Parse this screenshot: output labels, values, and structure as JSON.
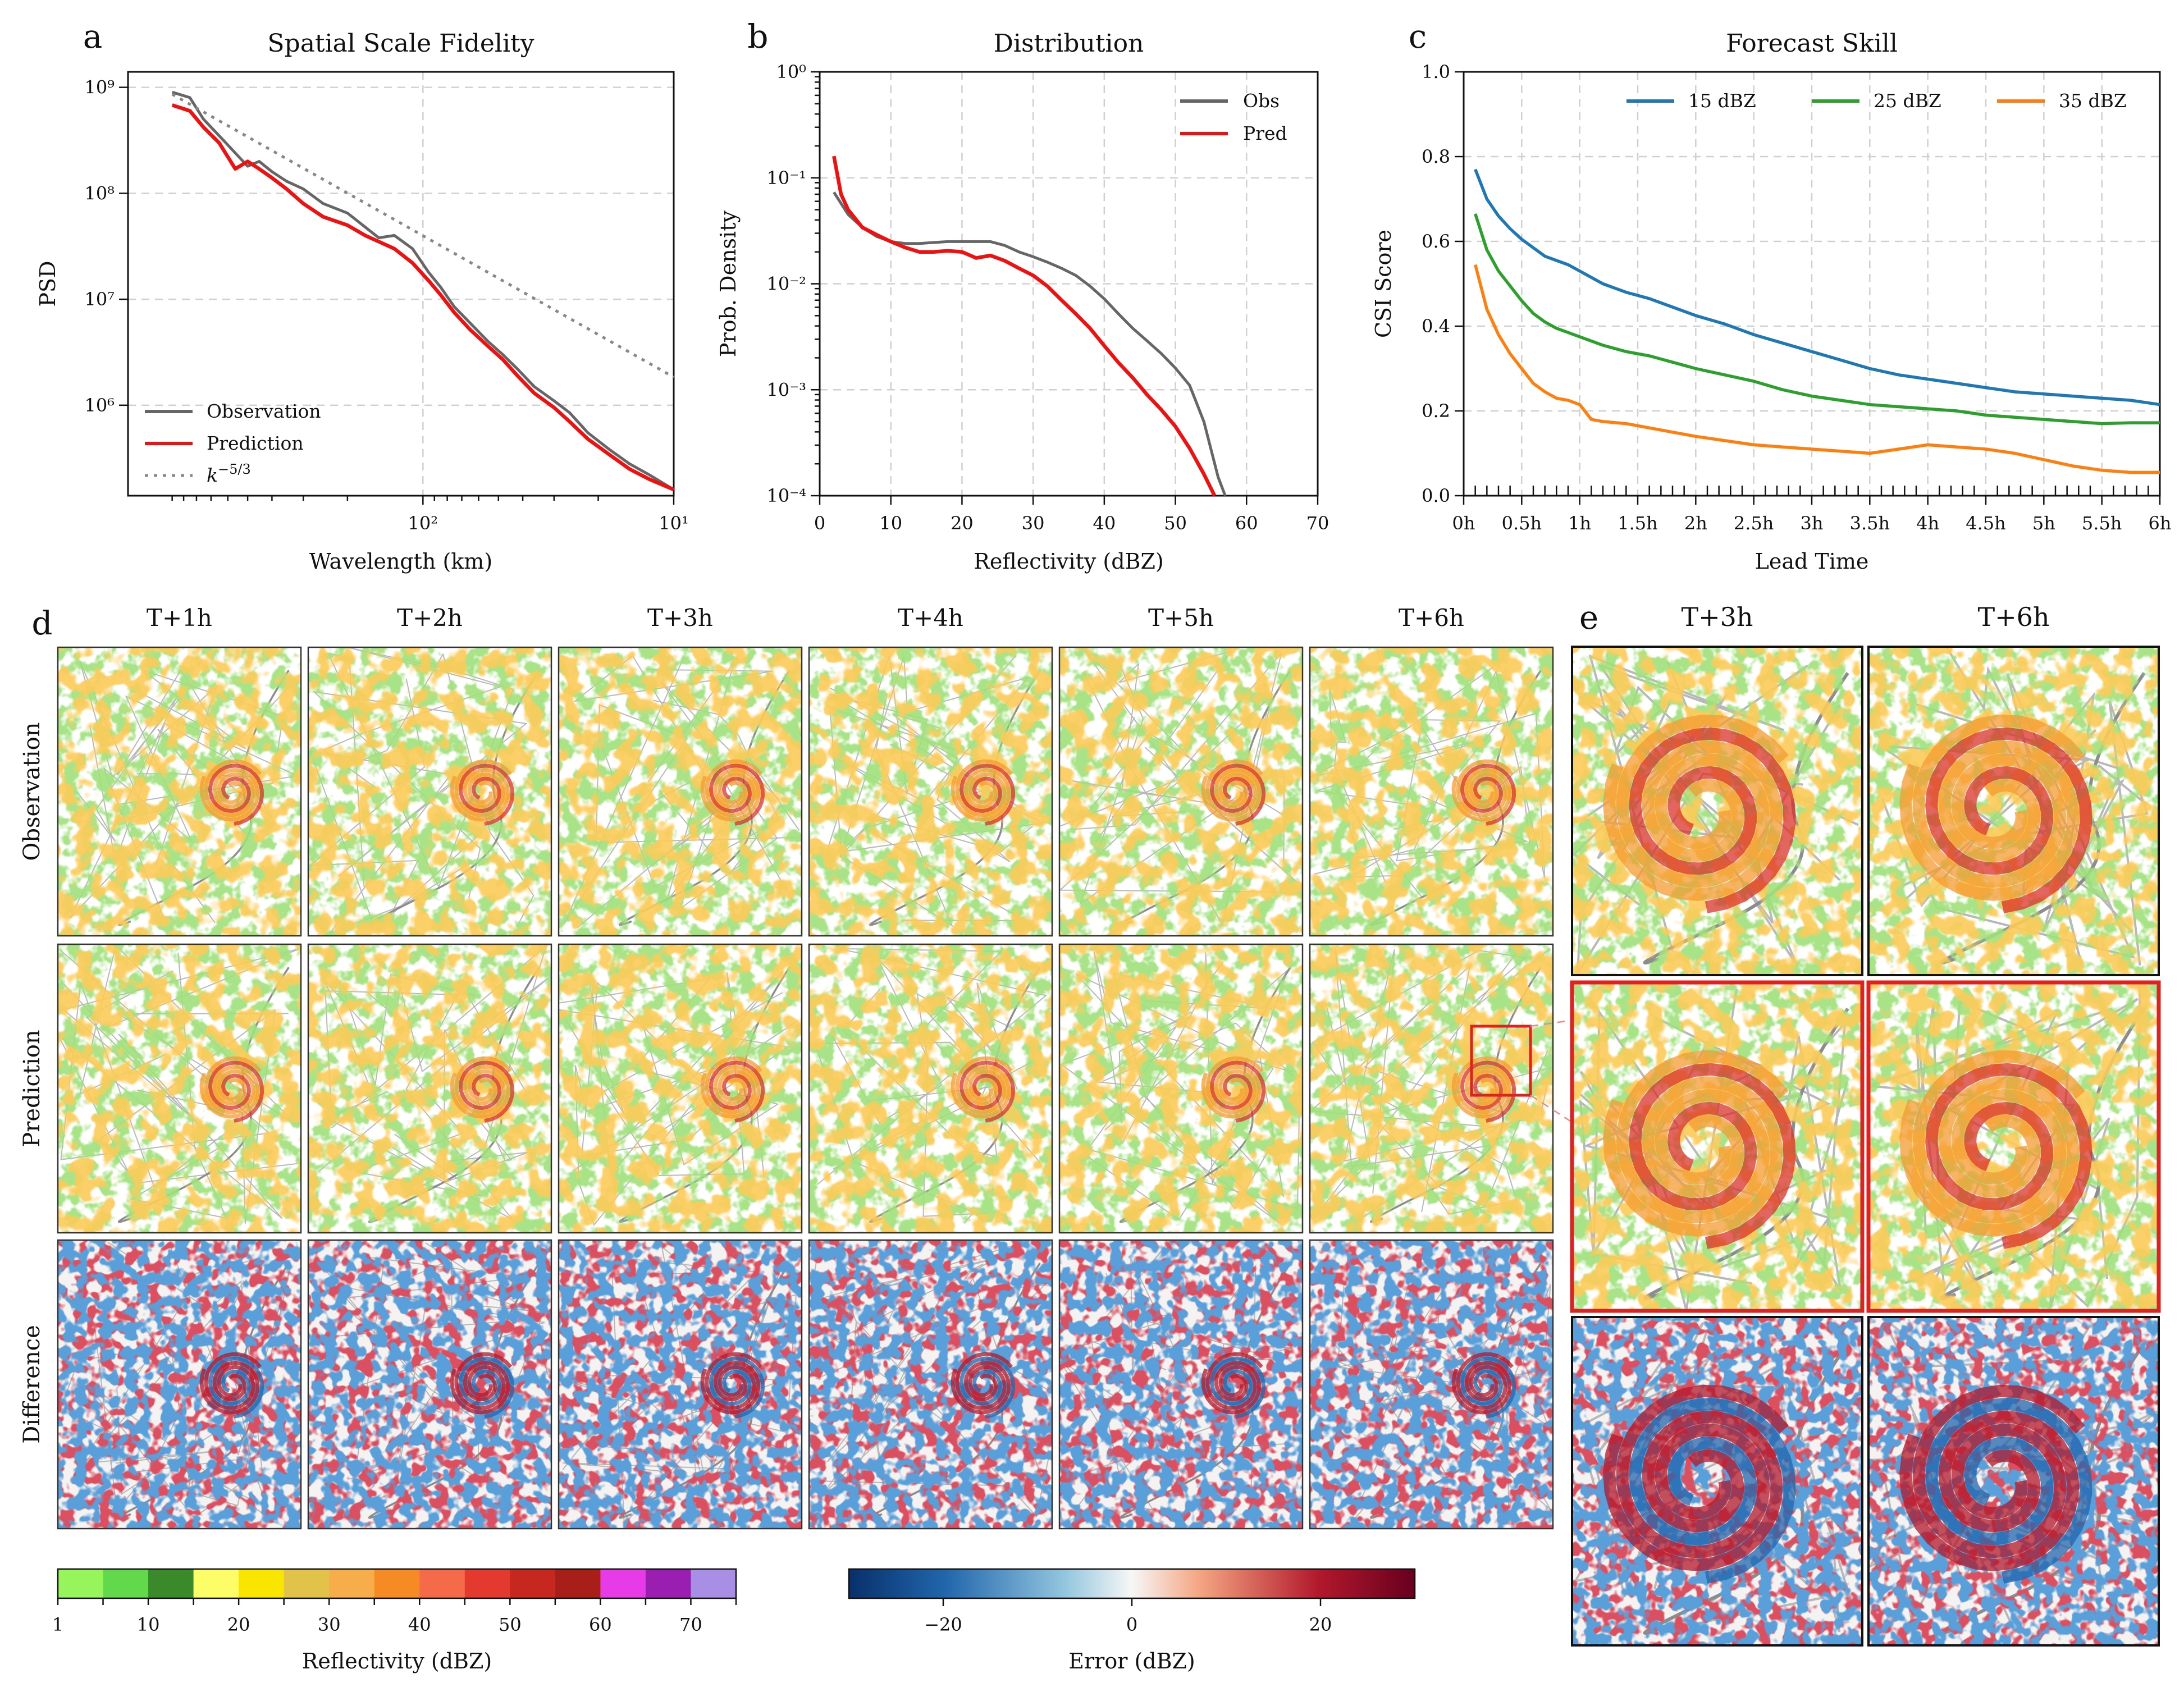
{
  "chart_data": [
    {
      "panel": "a",
      "type": "line",
      "title": "Spatial Scale Fidelity",
      "xlabel": "Wavelength (km)",
      "ylabel": "PSD",
      "xscale": "log",
      "yscale": "log",
      "x_reversed": true,
      "xlim_km": [
        1500,
        10
      ],
      "ylim": [
        140000,
        1400000000
      ],
      "xticks": [
        {
          "v": 100,
          "label": "10²"
        },
        {
          "v": 10,
          "label": "10¹"
        }
      ],
      "yticks": [
        {
          "v": 1000000,
          "label": "10⁶"
        },
        {
          "v": 10000000,
          "label": "10⁷"
        },
        {
          "v": 100000000,
          "label": "10⁸"
        },
        {
          "v": 1000000000,
          "label": "10⁹"
        }
      ],
      "legend_position": "bottom-left",
      "grid": true,
      "series": [
        {
          "name": "Observation",
          "color": "#666666",
          "style": "solid",
          "x": [
            1000,
            850,
            750,
            650,
            560,
            500,
            450,
            400,
            350,
            300,
            250,
            200,
            170,
            150,
            130,
            110,
            95,
            85,
            75,
            65,
            55,
            48,
            42,
            36,
            30,
            26,
            22,
            18,
            15,
            12.5,
            10
          ],
          "y": [
            900000000,
            800000000,
            500000000,
            350000000,
            240000000,
            180000000,
            200000000,
            160000000,
            130000000,
            110000000,
            80000000,
            65000000,
            48000000,
            38000000,
            40000000,
            30000000,
            18000000,
            13000000,
            8500000,
            6000000,
            4000000,
            3000000,
            2200000,
            1500000,
            1100000,
            850000,
            550000,
            380000,
            280000,
            220000,
            160000
          ]
        },
        {
          "name": "Prediction",
          "color": "#ee1111",
          "style": "solid",
          "x": [
            1000,
            850,
            750,
            650,
            560,
            500,
            450,
            400,
            350,
            300,
            250,
            200,
            170,
            150,
            130,
            110,
            95,
            85,
            75,
            65,
            55,
            48,
            42,
            36,
            30,
            26,
            22,
            18,
            15,
            12.5,
            10
          ],
          "y": [
            680000000,
            600000000,
            420000000,
            300000000,
            170000000,
            200000000,
            170000000,
            140000000,
            110000000,
            80000000,
            60000000,
            50000000,
            40000000,
            35000000,
            30000000,
            22000000,
            15000000,
            11000000,
            7500000,
            5200000,
            3600000,
            2700000,
            1900000,
            1300000,
            950000,
            700000,
            480000,
            340000,
            250000,
            200000,
            160000
          ]
        },
        {
          "name": "k^{-5/3}",
          "color": "#888888",
          "style": "dotted",
          "x": [
            1000,
            10
          ],
          "y": [
            860000000,
            1840000
          ]
        }
      ]
    },
    {
      "panel": "b",
      "type": "line",
      "title": "Distribution",
      "xlabel": "Reflectivity (dBZ)",
      "ylabel": "Prob. Density",
      "yscale": "log",
      "xlim": [
        0,
        70
      ],
      "ylim": [
        0.0001,
        1
      ],
      "xticks": [
        0,
        10,
        20,
        30,
        40,
        50,
        60,
        70
      ],
      "yticks": [
        {
          "v": 0.0001,
          "label": "10⁻⁴"
        },
        {
          "v": 0.001,
          "label": "10⁻³"
        },
        {
          "v": 0.01,
          "label": "10⁻²"
        },
        {
          "v": 0.1,
          "label": "10⁻¹"
        },
        {
          "v": 1,
          "label": "10⁰"
        }
      ],
      "legend_position": "top-right",
      "grid": true,
      "series": [
        {
          "name": "Obs",
          "color": "#666666",
          "x": [
            2,
            4,
            6,
            8,
            10,
            12,
            14,
            16,
            18,
            20,
            22,
            24,
            26,
            28,
            30,
            32,
            34,
            36,
            38,
            40,
            42,
            44,
            46,
            48,
            50,
            52,
            54,
            56,
            57
          ],
          "y": [
            0.073,
            0.045,
            0.034,
            0.028,
            0.025,
            0.024,
            0.024,
            0.0245,
            0.025,
            0.025,
            0.025,
            0.025,
            0.023,
            0.02,
            0.018,
            0.016,
            0.014,
            0.012,
            0.0095,
            0.0072,
            0.0052,
            0.0038,
            0.0029,
            0.0022,
            0.0016,
            0.0011,
            0.0005,
            0.00015,
            0.0001
          ]
        },
        {
          "name": "Pred",
          "color": "#ee1111",
          "x": [
            2,
            3,
            4,
            6,
            8,
            10,
            12,
            14,
            16,
            18,
            20,
            22,
            24,
            26,
            28,
            30,
            32,
            34,
            36,
            38,
            40,
            42,
            44,
            46,
            48,
            50,
            52,
            54,
            55.5
          ],
          "y": [
            0.16,
            0.07,
            0.05,
            0.034,
            0.029,
            0.025,
            0.022,
            0.02,
            0.02,
            0.0205,
            0.02,
            0.0175,
            0.0185,
            0.0165,
            0.014,
            0.012,
            0.0095,
            0.007,
            0.0052,
            0.0038,
            0.0026,
            0.0018,
            0.0013,
            0.0009,
            0.00065,
            0.00045,
            0.00028,
            0.00016,
            0.0001
          ]
        }
      ]
    },
    {
      "panel": "c",
      "type": "line",
      "title": "Forecast Skill",
      "xlabel": "Lead Time",
      "ylabel": "CSI Score",
      "xlim": [
        0,
        6
      ],
      "ylim": [
        0,
        1
      ],
      "xtick_labels": [
        "0h",
        "0.5h",
        "1h",
        "1.5h",
        "2h",
        "2.5h",
        "3h",
        "3.5h",
        "4h",
        "4.5h",
        "5h",
        "5.5h",
        "6h"
      ],
      "yticks": [
        0.0,
        0.2,
        0.4,
        0.6,
        0.8,
        1.0
      ],
      "legend_position": "top",
      "grid": true,
      "series": [
        {
          "name": "15 dBZ",
          "color": "#1f77b4",
          "x": [
            0.1,
            0.2,
            0.3,
            0.4,
            0.5,
            0.6,
            0.7,
            0.8,
            0.9,
            1.0,
            1.2,
            1.4,
            1.6,
            1.8,
            2.0,
            2.25,
            2.5,
            2.75,
            3.0,
            3.25,
            3.5,
            3.75,
            4.0,
            4.25,
            4.5,
            4.75,
            5.0,
            5.25,
            5.5,
            5.75,
            6.0
          ],
          "y": [
            0.77,
            0.7,
            0.66,
            0.63,
            0.605,
            0.585,
            0.565,
            0.555,
            0.545,
            0.53,
            0.5,
            0.48,
            0.465,
            0.445,
            0.425,
            0.405,
            0.38,
            0.36,
            0.34,
            0.32,
            0.3,
            0.285,
            0.275,
            0.265,
            0.255,
            0.245,
            0.24,
            0.235,
            0.23,
            0.225,
            0.215
          ]
        },
        {
          "name": "25 dBZ",
          "color": "#2ca02c",
          "x": [
            0.1,
            0.2,
            0.3,
            0.4,
            0.5,
            0.6,
            0.7,
            0.8,
            0.9,
            1.0,
            1.2,
            1.4,
            1.6,
            1.8,
            2.0,
            2.25,
            2.5,
            2.75,
            3.0,
            3.25,
            3.5,
            3.75,
            4.0,
            4.25,
            4.5,
            4.75,
            5.0,
            5.25,
            5.5,
            5.75,
            6.0
          ],
          "y": [
            0.665,
            0.58,
            0.53,
            0.495,
            0.46,
            0.43,
            0.41,
            0.395,
            0.385,
            0.375,
            0.355,
            0.34,
            0.33,
            0.315,
            0.3,
            0.285,
            0.27,
            0.25,
            0.235,
            0.225,
            0.215,
            0.21,
            0.205,
            0.2,
            0.19,
            0.185,
            0.18,
            0.175,
            0.17,
            0.172,
            0.172
          ]
        },
        {
          "name": "35 dBZ",
          "color": "#ff7f0e",
          "x": [
            0.1,
            0.2,
            0.3,
            0.4,
            0.5,
            0.6,
            0.7,
            0.8,
            0.9,
            1.0,
            1.1,
            1.2,
            1.4,
            1.6,
            1.8,
            2.0,
            2.25,
            2.5,
            2.75,
            3.0,
            3.25,
            3.5,
            3.75,
            4.0,
            4.25,
            4.5,
            4.75,
            5.0,
            5.25,
            5.5,
            5.75,
            6.0
          ],
          "y": [
            0.545,
            0.44,
            0.38,
            0.335,
            0.3,
            0.265,
            0.245,
            0.23,
            0.225,
            0.215,
            0.18,
            0.175,
            0.17,
            0.16,
            0.15,
            0.14,
            0.13,
            0.12,
            0.115,
            0.11,
            0.105,
            0.1,
            0.11,
            0.12,
            0.115,
            0.11,
            0.1,
            0.085,
            0.07,
            0.06,
            0.055,
            0.055
          ]
        }
      ]
    }
  ],
  "panel_labels": {
    "a": "a",
    "b": "b",
    "c": "c",
    "d": "d",
    "e": "e"
  },
  "panel_d": {
    "columns": [
      "T+1h",
      "T+2h",
      "T+3h",
      "T+4h",
      "T+5h",
      "T+6h"
    ],
    "rows": [
      "Observation",
      "Prediction",
      "Difference"
    ],
    "prediction_label_color": "#dd2222",
    "zoom_box_color": "#dd2222"
  },
  "panel_e": {
    "columns": [
      "T+3h",
      "T+6h"
    ]
  },
  "colorbar_reflectivity": {
    "label": "Reflectivity (dBZ)",
    "tick_labels": [
      "1",
      "10",
      "20",
      "30",
      "40",
      "50",
      "60",
      "70"
    ],
    "colors": [
      "#97f45a",
      "#61d94a",
      "#3a8a2b",
      "#fdfd68",
      "#f8e600",
      "#e2c34a",
      "#f7ad4a",
      "#f68b26",
      "#f56b4a",
      "#e3392f",
      "#c6281f",
      "#a81f1a",
      "#e63be6",
      "#9a1fb0",
      "#a98ee6"
    ]
  },
  "colorbar_error": {
    "label": "Error (dBZ)",
    "tick_labels": [
      "−20",
      "0",
      "20"
    ],
    "stops": [
      "#08306b",
      "#2166ac",
      "#92c5de",
      "#f7f7f7",
      "#f4a582",
      "#b2182b",
      "#67001f"
    ]
  }
}
